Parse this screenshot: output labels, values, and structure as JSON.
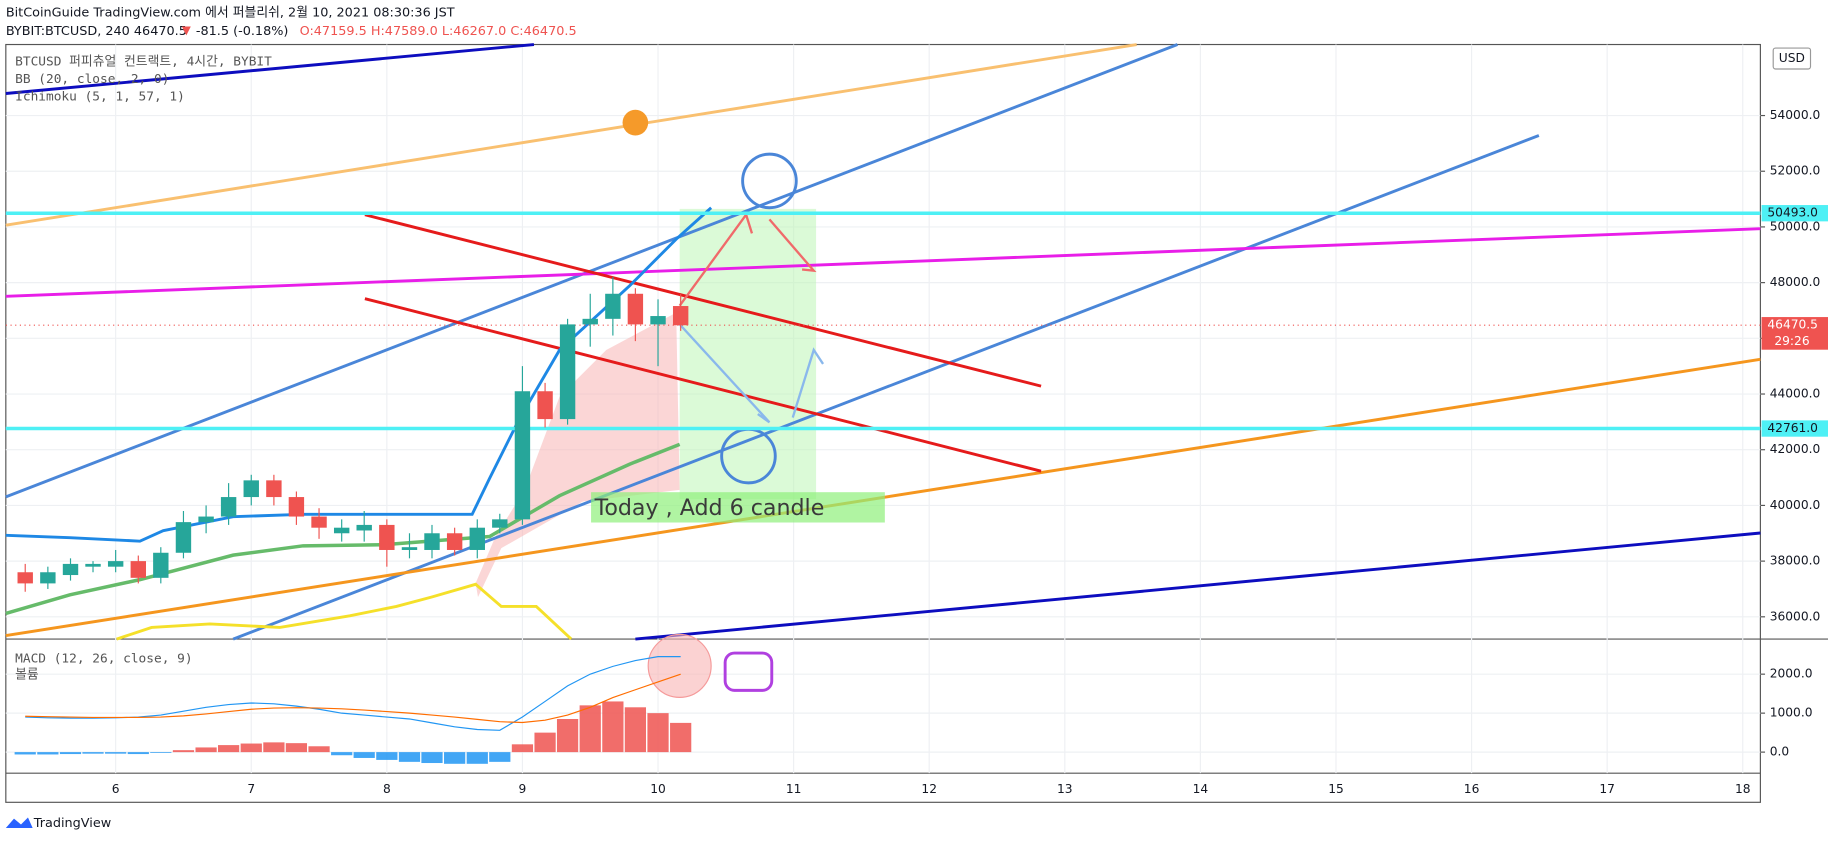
{
  "header": {
    "publisher": "BitCoinGuide TradingView.com 에서 퍼블리쉬, 2월 10, 2021 08:30:36 JST",
    "symbol": "BYBIT:BTCUSD, 240 46470.5",
    "arrow": "▼",
    "change": "-81.5 (-0.18%)",
    "ohlc": "O:47159.5 H:47589.0 L:46267.0 C:46470.5"
  },
  "footer": {
    "brand": "TradingView"
  },
  "chart_data": [
    {
      "type": "candlestick",
      "title": "BTCUSD 퍼피츄얼 컨트랙트, 4시간, BYBIT",
      "indicators": [
        "BB (20, close, 2, 0)",
        "Ichimoku (5, 1, 57, 1)"
      ],
      "currency": "USD",
      "x": [
        5.333,
        5.5,
        5.667,
        5.833,
        6,
        6.167,
        6.333,
        6.5,
        6.667,
        6.833,
        7,
        7.167,
        7.333,
        7.5,
        7.667,
        7.833,
        8,
        8.167,
        8.333,
        8.5,
        8.667,
        8.833,
        9,
        9.167,
        9.333,
        9.5,
        9.667,
        9.833,
        10,
        10.167
      ],
      "open": [
        37600,
        37200,
        37500,
        37800,
        37800,
        38000,
        37400,
        38300,
        39400,
        39600,
        40300,
        40900,
        40300,
        39600,
        39000,
        39100,
        39300,
        38400,
        38400,
        39000,
        38400,
        39200,
        39500,
        44100,
        43100,
        46500,
        46700,
        47600,
        46500,
        47159.5
      ],
      "high": [
        37900,
        37800,
        38100,
        38000,
        38400,
        38200,
        38500,
        39800,
        40000,
        40800,
        41100,
        41100,
        40500,
        39900,
        39500,
        39800,
        39500,
        39000,
        39300,
        39200,
        39500,
        39700,
        45000,
        44400,
        46700,
        47600,
        48200,
        47800,
        47400,
        47589
      ],
      "low": [
        36900,
        37000,
        37300,
        37600,
        37600,
        37200,
        37200,
        38100,
        39000,
        39300,
        40000,
        40000,
        39300,
        38800,
        38700,
        38700,
        37800,
        38100,
        38100,
        38200,
        38100,
        39000,
        39300,
        42800,
        42900,
        45700,
        46100,
        45900,
        45000,
        46267
      ],
      "close": [
        37200,
        37600,
        37900,
        37900,
        38000,
        37400,
        38300,
        39400,
        39600,
        40300,
        40900,
        40300,
        39600,
        39200,
        39200,
        39300,
        38400,
        38500,
        39000,
        38400,
        39200,
        39500,
        44100,
        43100,
        46500,
        46700,
        47600,
        46500,
        46800,
        46470.5
      ],
      "up_color": "#26a69a",
      "down_color": "#ef5350",
      "xlim": [
        5.19,
        18.13
      ],
      "xticks": [
        6,
        7,
        8,
        9,
        10,
        11,
        12,
        13,
        14,
        15,
        16,
        17,
        18
      ],
      "ylim": [
        35200,
        56550
      ],
      "yticks": [
        {
          "value": 36000,
          "label": "36000.0"
        },
        {
          "value": 38000,
          "label": "38000.0"
        },
        {
          "value": 40000,
          "label": "40000.0"
        },
        {
          "value": 42000,
          "label": "42000.0"
        },
        {
          "value": 44000,
          "label": "44000.0"
        },
        {
          "value": 46000,
          "label": "46000.0"
        },
        {
          "value": 48000,
          "label": "48000.0"
        },
        {
          "value": 50000,
          "label": "50000.0"
        },
        {
          "value": 52000,
          "label": "52000.0"
        },
        {
          "value": 54000,
          "label": "54000.0"
        }
      ],
      "levels": [
        {
          "value": 50493,
          "label": "50493.0"
        },
        {
          "value": 42761,
          "label": "42761.0"
        }
      ],
      "level_color": "#4ef0f5",
      "last_price": {
        "value": 46470.5,
        "label": "46470.5"
      },
      "countdown": "29:26",
      "annotation": "Today , Add 6 candle",
      "grid": true
    },
    {
      "type": "macd",
      "title": "MACD (12, 26, close, 9)",
      "volume_label": "볼륨",
      "x": [
        5.333,
        5.5,
        5.667,
        5.833,
        6,
        6.167,
        6.333,
        6.5,
        6.667,
        6.833,
        7,
        7.167,
        7.333,
        7.5,
        7.667,
        7.833,
        8,
        8.167,
        8.333,
        8.5,
        8.667,
        8.833,
        9,
        9.167,
        9.333,
        9.5,
        9.667,
        9.833,
        10,
        10.167
      ],
      "histogram": [
        -60,
        -60,
        -50,
        -40,
        -40,
        -50,
        -20,
        50,
        120,
        180,
        220,
        250,
        230,
        150,
        -80,
        -150,
        -200,
        -250,
        -280,
        -300,
        -300,
        -250,
        200,
        500,
        850,
        1200,
        1300,
        1150,
        1000,
        750
      ],
      "series": [
        {
          "name": "MACD",
          "color": "#2196f3",
          "values": [
            900,
            880,
            870,
            870,
            880,
            900,
            950,
            1050,
            1150,
            1220,
            1260,
            1240,
            1180,
            1100,
            1000,
            950,
            900,
            850,
            750,
            650,
            580,
            560,
            900,
            1300,
            1700,
            2000,
            2200,
            2350,
            2450,
            2450
          ]
        },
        {
          "name": "Signal",
          "color": "#ff6d00",
          "values": [
            920,
            910,
            900,
            890,
            890,
            890,
            900,
            930,
            980,
            1040,
            1100,
            1130,
            1140,
            1130,
            1110,
            1080,
            1040,
            1000,
            950,
            900,
            840,
            780,
            760,
            820,
            950,
            1150,
            1400,
            1600,
            1800,
            2000
          ]
        }
      ],
      "up_color": "#ef5350",
      "down_color": "#2196f3",
      "ylim": [
        -540,
        2900
      ],
      "yticks": [
        {
          "value": 0,
          "label": "0.0"
        },
        {
          "value": 1000,
          "label": "1000.0"
        },
        {
          "value": 2000,
          "label": "2000.0"
        }
      ]
    }
  ]
}
